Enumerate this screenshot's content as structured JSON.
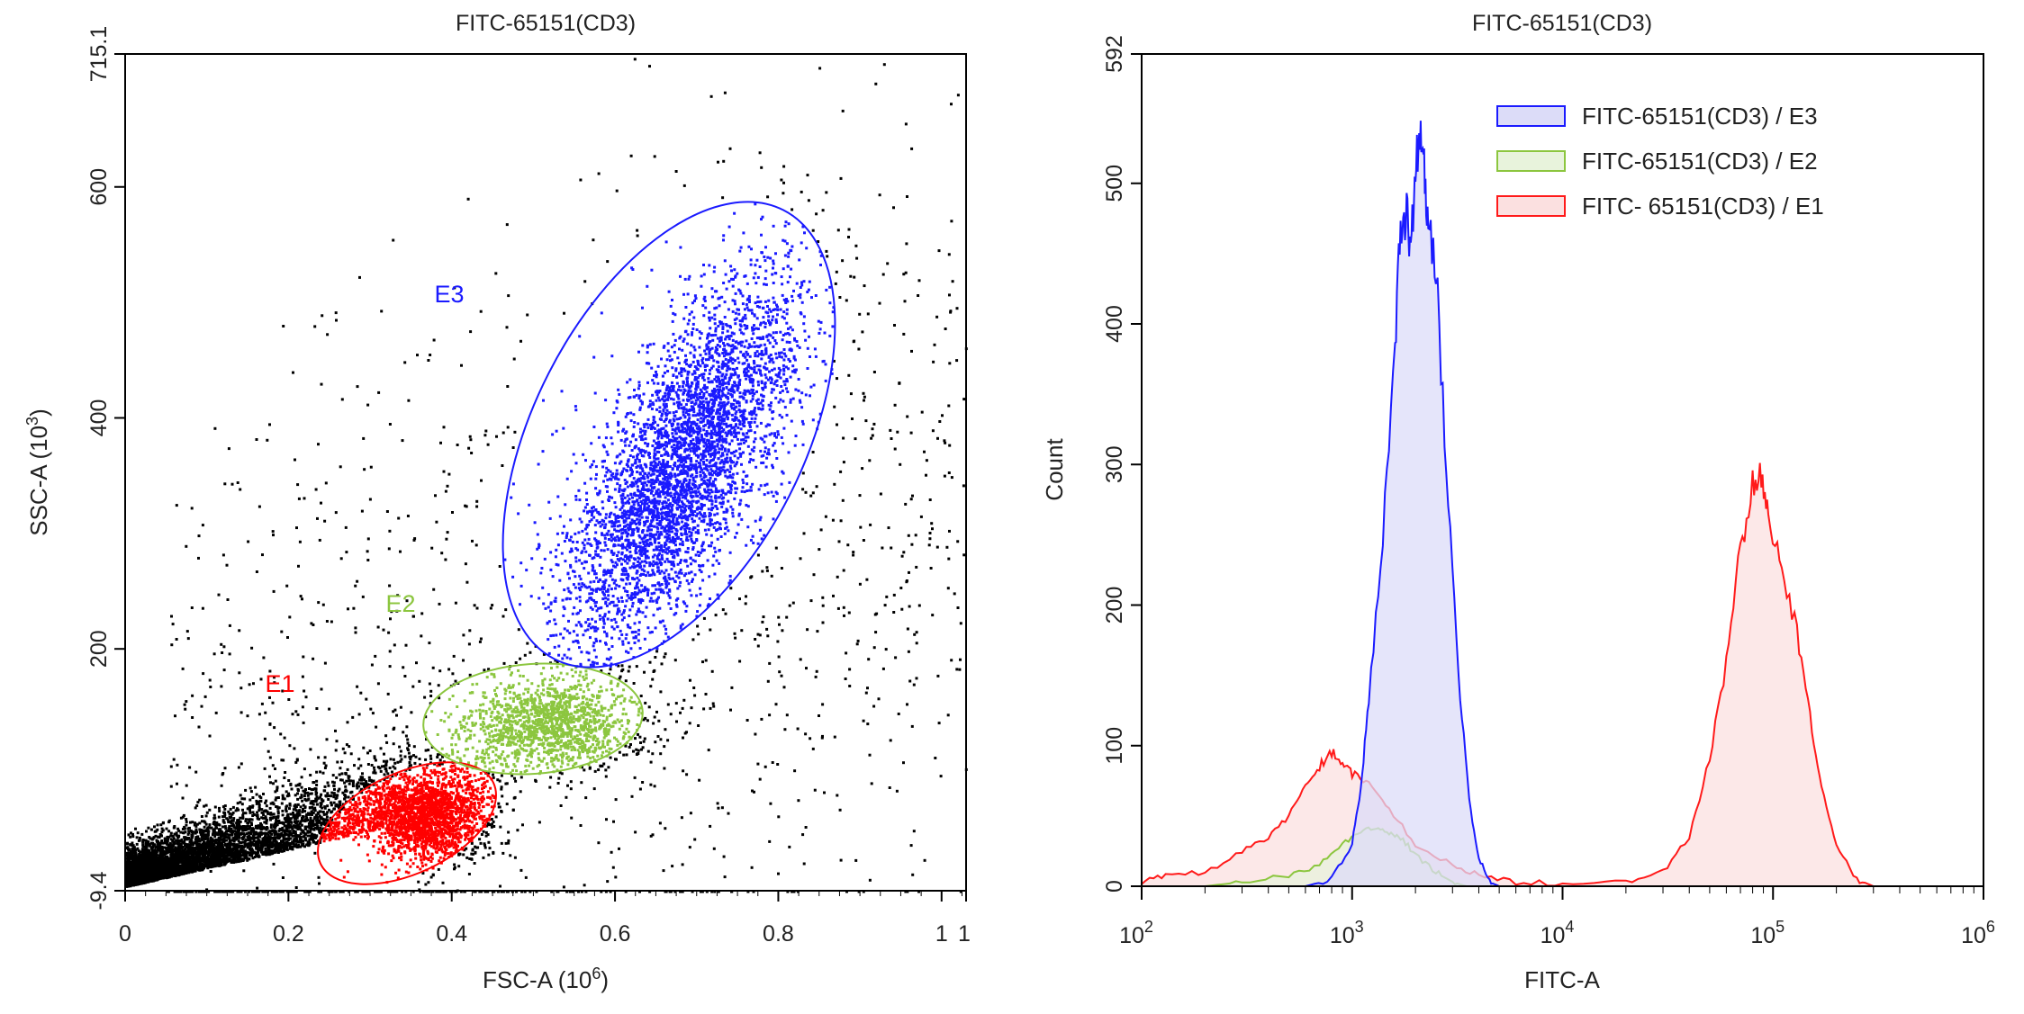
{
  "chart_data": [
    {
      "type": "scatter",
      "title": "FITC-65151(CD3)",
      "xlabel": "FSC-A  (10^6)",
      "xlabel_main": "FSC-A  (10",
      "xlabel_exp": "6",
      "xlabel_close": ")",
      "ylabel_main": "SSC-A  (10",
      "ylabel_exp": "3",
      "ylabel_close": ")",
      "xlim": [
        0,
        1.03
      ],
      "ylim": [
        -9.4,
        715.1
      ],
      "x_ticks": [
        "0",
        "0.2",
        "0.4",
        "0.6",
        "0.8",
        "1",
        "1"
      ],
      "x_tick_values": [
        0,
        0.2,
        0.4,
        0.6,
        0.8,
        1.0,
        1.03
      ],
      "y_ticks": [
        "-9.4",
        "200",
        "400",
        "600",
        "715.1"
      ],
      "y_tick_values": [
        -9.4,
        200,
        400,
        600,
        715.1
      ],
      "grid": false,
      "gates": [
        {
          "name": "E1",
          "color": "#ff0000",
          "center": [
            0.37,
            55
          ]
        },
        {
          "name": "E2",
          "color": "#8cc63f",
          "center": [
            0.52,
            135
          ]
        },
        {
          "name": "E3",
          "color": "#1a1aff",
          "center": [
            0.68,
            390
          ]
        }
      ],
      "ungated_color": "#000000"
    },
    {
      "type": "area",
      "title": "FITC-65151(CD3)",
      "xlabel": "FITC-A",
      "ylabel": "Count",
      "x_scale": "log",
      "xlim": [
        100,
        1000000
      ],
      "ylim": [
        0,
        592
      ],
      "x_ticks": [
        {
          "base": "10",
          "exp": "2"
        },
        {
          "base": "10",
          "exp": "3"
        },
        {
          "base": "10",
          "exp": "4"
        },
        {
          "base": "10",
          "exp": "5"
        },
        {
          "base": "10",
          "exp": "6"
        }
      ],
      "x_tick_values": [
        100,
        1000,
        10000,
        100000,
        1000000
      ],
      "y_ticks": [
        "0",
        "100",
        "200",
        "300",
        "400",
        "500",
        "592"
      ],
      "y_tick_values": [
        0,
        100,
        200,
        300,
        400,
        500,
        592
      ],
      "grid": false,
      "legend_position": "top-right",
      "series": [
        {
          "name": "FITC-65151(CD3) / E3",
          "color": "#1a1aff",
          "fill": "#dcdcf8",
          "x": [
            600,
            800,
            1000,
            1100,
            1200,
            1400,
            1600,
            1700,
            1800,
            1900,
            2000,
            2100,
            2200,
            2300,
            2500,
            2800,
            3200,
            3600,
            4000,
            4500,
            5000
          ],
          "y": [
            0,
            5,
            30,
            70,
            130,
            250,
            380,
            470,
            480,
            455,
            510,
            540,
            520,
            470,
            440,
            300,
            150,
            60,
            20,
            3,
            0
          ]
        },
        {
          "name": "FITC-65151(CD3) / E2",
          "color": "#8cc63f",
          "fill": "#e8f3dc",
          "x": [
            200,
            300,
            500,
            700,
            900,
            1100,
            1300,
            1500,
            1700,
            2000,
            2500,
            3000,
            3500
          ],
          "y": [
            0,
            3,
            8,
            15,
            30,
            38,
            42,
            38,
            35,
            22,
            10,
            3,
            0
          ]
        },
        {
          "name": "FITC- 65151(CD3) / E1",
          "color": "#ff1a1a",
          "fill": "#fbe0e0",
          "x": [
            100,
            130,
            200,
            300,
            400,
            500,
            600,
            700,
            800,
            900,
            1000,
            1200,
            1500,
            2000,
            3000,
            4000,
            6000,
            10000,
            20000,
            30000,
            40000,
            50000,
            60000,
            70000,
            80000,
            88000,
            95000,
            110000,
            130000,
            150000,
            170000,
            200000,
            250000,
            300000
          ],
          "y": [
            3,
            8,
            10,
            25,
            35,
            50,
            70,
            85,
            95,
            88,
            80,
            75,
            55,
            30,
            15,
            8,
            3,
            2,
            3,
            10,
            35,
            90,
            160,
            240,
            285,
            295,
            265,
            230,
            180,
            120,
            70,
            30,
            5,
            0
          ]
        }
      ]
    }
  ]
}
